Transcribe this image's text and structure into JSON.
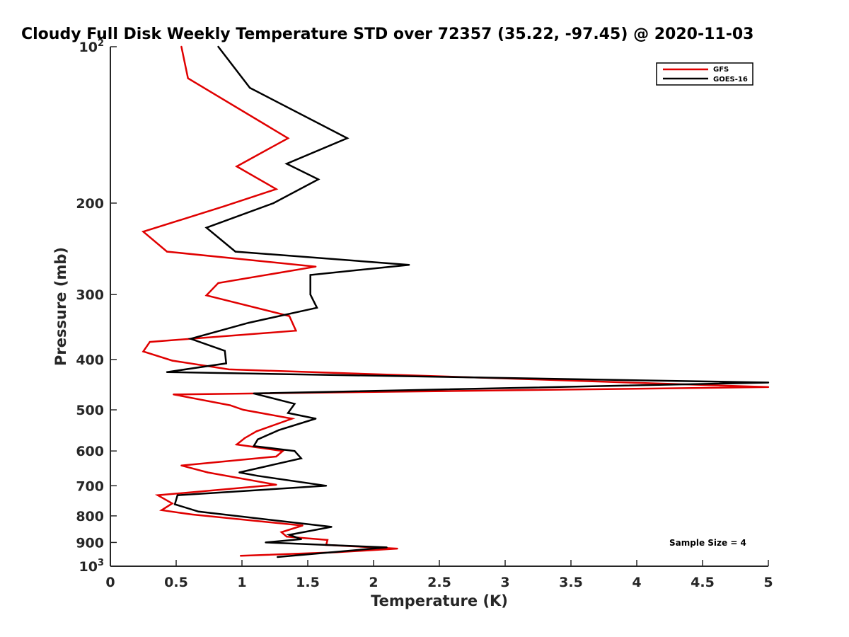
{
  "chart_data": {
    "type": "line",
    "title": "Cloudy Full Disk Weekly Temperature STD over 72357 (35.22, -97.45) @ 2020-11-03",
    "xlabel": "Temperature (K)",
    "ylabel": "Pressure (mb)",
    "xlim": [
      0,
      5
    ],
    "ylim": [
      100,
      1000
    ],
    "y_scale": "log",
    "y_reversed": true,
    "grid": false,
    "legend_position": "top-right",
    "xticks": [
      "0",
      "0.5",
      "1",
      "1.5",
      "2",
      "2.5",
      "3",
      "3.5",
      "4",
      "4.5",
      "5"
    ],
    "xtick_values": [
      0,
      0.5,
      1,
      1.5,
      2,
      2.5,
      3,
      3.5,
      4,
      4.5,
      5
    ],
    "yticks": [
      {
        "value": 100,
        "base": "10",
        "exp": "2"
      },
      {
        "value": 200,
        "label": "200"
      },
      {
        "value": 300,
        "label": "300"
      },
      {
        "value": 400,
        "label": "400"
      },
      {
        "value": 500,
        "label": "500"
      },
      {
        "value": 600,
        "label": "600"
      },
      {
        "value": 700,
        "label": "700"
      },
      {
        "value": 800,
        "label": "800"
      },
      {
        "value": 900,
        "label": "900"
      },
      {
        "value": 1000,
        "base": "10",
        "exp": "3"
      }
    ],
    "annotation": "Sample Size = 4",
    "series": [
      {
        "name": "GFS",
        "color": "#e00000",
        "points": [
          [
            0.54,
            100
          ],
          [
            0.59,
            115
          ],
          [
            1.35,
            150
          ],
          [
            0.96,
            170
          ],
          [
            1.26,
            188
          ],
          [
            0.86,
            203
          ],
          [
            0.25,
            227
          ],
          [
            0.43,
            248
          ],
          [
            1.56,
            265
          ],
          [
            0.82,
            285
          ],
          [
            0.73,
            301
          ],
          [
            1.36,
            330
          ],
          [
            1.41,
            352
          ],
          [
            0.3,
            370
          ],
          [
            0.25,
            386
          ],
          [
            0.47,
            402
          ],
          [
            0.9,
            418
          ],
          [
            5.0,
            452
          ],
          [
            0.48,
            467
          ],
          [
            0.91,
            490
          ],
          [
            1.01,
            500
          ],
          [
            1.38,
            520
          ],
          [
            1.11,
            550
          ],
          [
            1.02,
            567
          ],
          [
            0.96,
            583
          ],
          [
            1.31,
            600
          ],
          [
            1.26,
            615
          ],
          [
            0.54,
            640
          ],
          [
            0.74,
            660
          ],
          [
            1.26,
            697
          ],
          [
            0.36,
            730
          ],
          [
            0.47,
            757
          ],
          [
            0.39,
            780
          ],
          [
            0.62,
            795
          ],
          [
            1.46,
            835
          ],
          [
            1.3,
            860
          ],
          [
            1.34,
            877
          ],
          [
            1.65,
            890
          ],
          [
            1.64,
            910
          ],
          [
            2.18,
            925
          ],
          [
            1.72,
            940
          ],
          [
            0.99,
            955
          ]
        ]
      },
      {
        "name": "GOES-16",
        "color": "#000000",
        "points": [
          [
            0.82,
            100
          ],
          [
            1.06,
            120
          ],
          [
            1.8,
            150
          ],
          [
            1.34,
            168
          ],
          [
            1.58,
            180
          ],
          [
            1.24,
            200
          ],
          [
            0.73,
            223
          ],
          [
            0.95,
            248
          ],
          [
            2.27,
            263
          ],
          [
            1.52,
            275
          ],
          [
            1.52,
            300
          ],
          [
            1.57,
            318
          ],
          [
            1.05,
            340
          ],
          [
            0.61,
            365
          ],
          [
            0.87,
            385
          ],
          [
            0.88,
            407
          ],
          [
            0.43,
            423
          ],
          [
            5.0,
            443
          ],
          [
            1.09,
            465
          ],
          [
            1.4,
            487
          ],
          [
            1.35,
            507
          ],
          [
            1.56,
            520
          ],
          [
            1.28,
            547
          ],
          [
            1.12,
            570
          ],
          [
            1.09,
            587
          ],
          [
            1.4,
            600
          ],
          [
            1.45,
            620
          ],
          [
            0.98,
            660
          ],
          [
            1.12,
            670
          ],
          [
            1.64,
            700
          ],
          [
            0.51,
            730
          ],
          [
            0.49,
            760
          ],
          [
            0.67,
            785
          ],
          [
            1.68,
            840
          ],
          [
            1.36,
            870
          ],
          [
            1.45,
            887
          ],
          [
            1.18,
            900
          ],
          [
            2.1,
            920
          ],
          [
            1.27,
            960
          ]
        ]
      }
    ]
  }
}
